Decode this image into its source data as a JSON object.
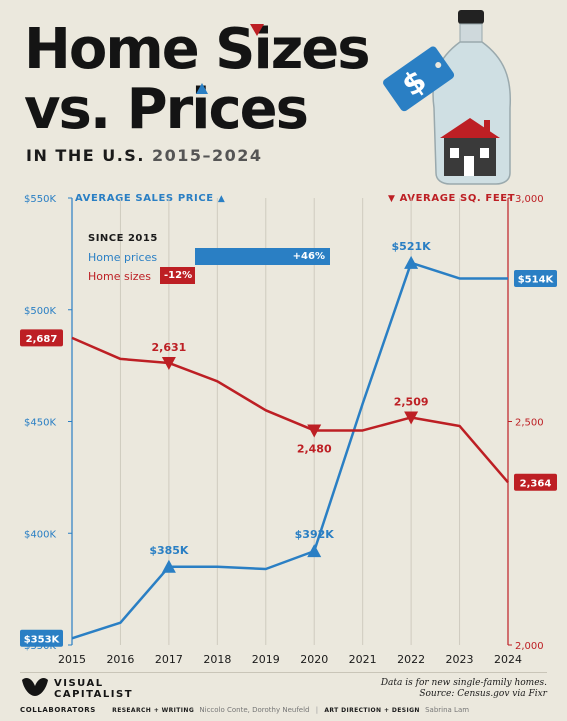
{
  "header": {
    "title_line1": "Home Sizes",
    "title_line2": "vs. Prices",
    "subtitle_prefix": "IN THE U.S.",
    "subtitle_years": "2015–2024"
  },
  "legend": {
    "since": "SINCE 2015",
    "prices_label": "Home prices",
    "prices_change": "+46%",
    "sizes_label": "Home sizes",
    "sizes_change": "-12%"
  },
  "chart_data": {
    "type": "line",
    "x": [
      2015,
      2016,
      2017,
      2018,
      2019,
      2020,
      2021,
      2022,
      2023,
      2024
    ],
    "series": [
      {
        "name": "AVERAGE SALES PRICE",
        "axis": "left",
        "color": "#2a7fc4",
        "values": [
          353,
          360,
          385,
          385,
          384,
          392,
          458,
          521,
          514,
          514
        ],
        "labels": {
          "2015": "$353K",
          "2017": "$385K",
          "2020": "$392K",
          "2022": "$521K",
          "2024": "$514K"
        }
      },
      {
        "name": "AVERAGE SQ. FEET",
        "axis": "right",
        "color": "#bd1f24",
        "values": [
          2687,
          2640,
          2631,
          2590,
          2525,
          2480,
          2480,
          2509,
          2490,
          2364
        ],
        "labels": {
          "2015": "2,687",
          "2017": "2,631",
          "2020": "2,480",
          "2022": "2,509",
          "2024": "2,364"
        }
      }
    ],
    "left_axis": {
      "title": "AVERAGE SALES PRICE",
      "ylim": [
        350,
        550
      ],
      "ticks": [
        350,
        400,
        450,
        500,
        550
      ],
      "tick_labels": [
        "$350K",
        "$400K",
        "$450K",
        "$500K",
        "$550K"
      ]
    },
    "right_axis": {
      "title": "AVERAGE SQ. FEET",
      "ylim": [
        2000,
        3000
      ],
      "ticks": [
        2000,
        2500,
        3000
      ],
      "tick_labels": [
        "2,000",
        "2,500",
        "3,000"
      ]
    },
    "grid": "vertical",
    "colors": {
      "price": "#2a7fc4",
      "size": "#bd1f24",
      "grid": "#cfcbbf",
      "background": "#ebe8dd"
    }
  },
  "footer": {
    "logo_line1": "VISUAL",
    "logo_line2": "CAPITALIST",
    "note_line1": "Data is for new single-family homes.",
    "note_line2": "Source: Census.gov via Fixr",
    "collaborators": "COLLABORATORS",
    "research_label": "RESEARCH + WRITING",
    "research_names": "Niccolo Conte, Dorothy Neufeld",
    "art_label": "ART DIRECTION + DESIGN",
    "art_names": "Sabrina Lam"
  }
}
